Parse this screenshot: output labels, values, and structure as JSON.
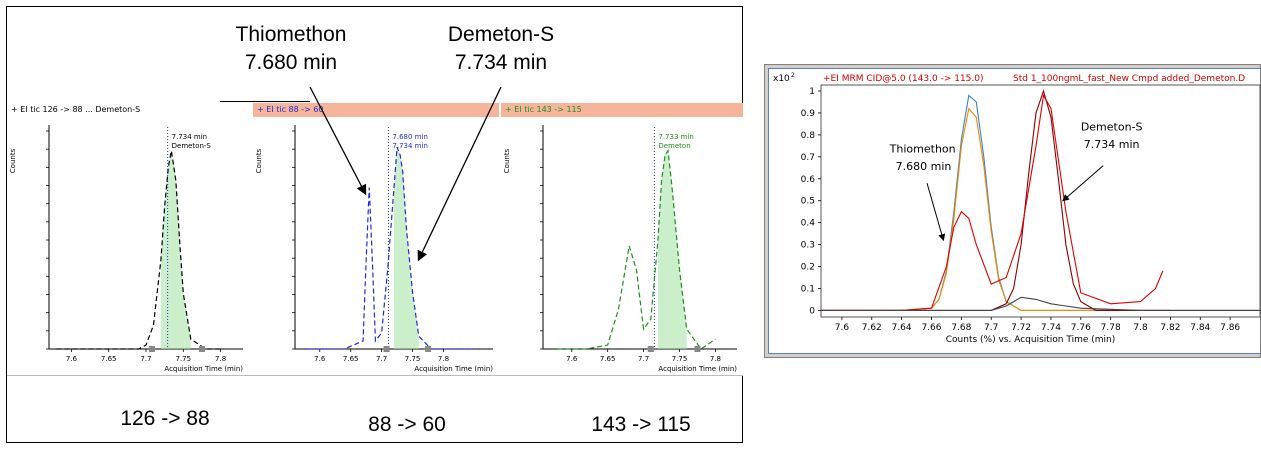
{
  "left_figure": {
    "callouts": {
      "thiomethon_name": "Thiomethon",
      "thiomethon_time": "7.680 min",
      "demeton_name": "Demeton-S",
      "demeton_time": "7.734 min"
    },
    "transition_labels": [
      "126 -> 88",
      "88 -> 60",
      "143 -> 115"
    ],
    "panels": [
      {
        "header_text": "+ EI tic 126 -> 88 ... Demeton-S",
        "header_color": "#ffffff",
        "peak_label_1": "7.734 min",
        "peak_label_2": "Demeton-S",
        "y_axis_label": "Counts",
        "x_axis_label": "Acquisition Time (min)",
        "line_color": "#000000",
        "x_ticks": [
          "7.6",
          "7.65",
          "7.7",
          "7.75",
          "7.8"
        ]
      },
      {
        "header_text": "+ EI tic 88 -> 60",
        "header_color": "#f6b59a",
        "peak_label_1": "7.680 min",
        "peak_label_2": "7.734 min",
        "y_axis_label": "Counts",
        "x_axis_label": "Acquisition Time (min)",
        "line_color": "#1f2bd6",
        "x_ticks": [
          "7.6",
          "7.65",
          "7.7",
          "7.75",
          "7.8"
        ]
      },
      {
        "header_text": "+ EI tic 143 -> 115",
        "header_color": "#f6b59a",
        "peak_label_1": "7.733 min",
        "peak_label_2": "Demeton",
        "y_axis_label": "Counts",
        "x_axis_label": "Acquisition Time (min)",
        "line_color": "#1f8f1f",
        "x_ticks": [
          "7.6",
          "7.65",
          "7.7",
          "7.75",
          "7.8"
        ]
      }
    ]
  },
  "right_chart": {
    "header_text": "+EI MRM CID@5.0 (143.0 -> 115.0)",
    "header_file": "Std 1_100ngmL_fast_New Cmpd added_Demeton.D",
    "y_scale_label": "x10",
    "y_scale_exp": "2",
    "x_axis_title": "Counts (%) vs. Acquisition Time (min)",
    "annotation_thiomethon_name": "Thiomethon",
    "annotation_thiomethon_time": "7.680 min",
    "annotation_demeton_name": "Demeton-S",
    "annotation_demeton_time": "7.734 min"
  },
  "chart_data": [
    {
      "type": "line",
      "series": [
        {
          "color": "#000000",
          "x": [
            7.58,
            7.62,
            7.66,
            7.69,
            7.7,
            7.71,
            7.72,
            7.725,
            7.73,
            7.734,
            7.74,
            7.745,
            7.75,
            7.76,
            7.78,
            7.8
          ],
          "y": [
            0,
            0,
            0,
            0,
            0.02,
            0.12,
            0.45,
            0.72,
            0.92,
            1.0,
            0.85,
            0.55,
            0.28,
            0.05,
            0,
            0
          ]
        }
      ],
      "x_ticks": [
        "7.6",
        "7.65",
        "7.7",
        "7.75",
        "7.8"
      ]
    },
    {
      "type": "line",
      "series": [
        {
          "color": "#1f2bd6",
          "x": [
            7.58,
            7.64,
            7.67,
            7.675,
            7.68,
            7.685,
            7.69,
            7.7,
            7.71,
            7.72,
            7.725,
            7.73,
            7.734,
            7.74,
            7.75,
            7.76,
            7.78,
            7.85
          ],
          "y": [
            0,
            0,
            0.05,
            0.55,
            1.0,
            0.55,
            0.05,
            0.1,
            0.5,
            1.0,
            1.25,
            1.2,
            1.1,
            0.75,
            0.35,
            0.08,
            0,
            0
          ]
        }
      ],
      "x_ticks": [
        "7.6",
        "7.65",
        "7.7",
        "7.75",
        "7.8"
      ]
    },
    {
      "type": "line",
      "series": [
        {
          "color": "#1f8f1f",
          "x": [
            7.58,
            7.62,
            7.65,
            7.665,
            7.68,
            7.69,
            7.7,
            7.71,
            7.72,
            7.725,
            7.73,
            7.734,
            7.74,
            7.75,
            7.76,
            7.78,
            7.8
          ],
          "y": [
            0,
            0,
            0.02,
            0.2,
            0.52,
            0.4,
            0.1,
            0.15,
            0.55,
            0.85,
            0.98,
            1.0,
            0.8,
            0.4,
            0.1,
            0,
            0.05
          ]
        }
      ],
      "x_ticks": [
        "7.6",
        "7.65",
        "7.7",
        "7.75",
        "7.8"
      ]
    },
    {
      "type": "line",
      "xlabel": "Counts (%) vs. Acquisition Time (min)",
      "xlim": [
        7.586,
        7.88
      ],
      "ylim": [
        -0.03,
        1.0
      ],
      "x_ticks": [
        7.6,
        7.62,
        7.64,
        7.66,
        7.68,
        7.7,
        7.72,
        7.74,
        7.76,
        7.78,
        7.8,
        7.82,
        7.84,
        7.86
      ],
      "y_ticks": [
        0,
        0.1,
        0.2,
        0.3,
        0.4,
        0.5,
        0.6,
        0.7,
        0.8,
        0.9,
        1
      ],
      "series": [
        {
          "color": "#3a7fd0",
          "x": [
            7.586,
            7.64,
            7.66,
            7.665,
            7.67,
            7.675,
            7.68,
            7.685,
            7.69,
            7.695,
            7.7,
            7.705,
            7.71,
            7.72,
            7.74,
            7.88
          ],
          "y": [
            0,
            0,
            0.01,
            0.05,
            0.18,
            0.45,
            0.78,
            0.98,
            0.95,
            0.7,
            0.38,
            0.15,
            0.04,
            0,
            0,
            0
          ]
        },
        {
          "color": "#f08a00",
          "x": [
            7.586,
            7.64,
            7.66,
            7.665,
            7.67,
            7.675,
            7.68,
            7.685,
            7.69,
            7.695,
            7.7,
            7.705,
            7.71,
            7.72,
            7.74,
            7.88
          ],
          "y": [
            0,
            0,
            0.01,
            0.05,
            0.17,
            0.42,
            0.75,
            0.92,
            0.88,
            0.66,
            0.36,
            0.14,
            0.04,
            0,
            0,
            0
          ]
        },
        {
          "color": "#8a0000",
          "x": [
            7.586,
            7.7,
            7.71,
            7.715,
            7.72,
            7.725,
            7.73,
            7.735,
            7.74,
            7.745,
            7.75,
            7.755,
            7.76,
            7.77,
            7.79,
            7.82
          ],
          "y": [
            0,
            0,
            0.03,
            0.1,
            0.3,
            0.62,
            0.9,
            1.0,
            0.88,
            0.6,
            0.3,
            0.12,
            0.04,
            0,
            0,
            0
          ]
        },
        {
          "color": "#e00000",
          "x": [
            7.586,
            7.64,
            7.66,
            7.67,
            7.675,
            7.68,
            7.685,
            7.69,
            7.7,
            7.71,
            7.72,
            7.73,
            7.735,
            7.74,
            7.75,
            7.76,
            7.78,
            7.8,
            7.81,
            7.815
          ],
          "y": [
            0,
            0,
            0.01,
            0.2,
            0.38,
            0.45,
            0.42,
            0.3,
            0.12,
            0.15,
            0.35,
            0.75,
            0.98,
            0.92,
            0.45,
            0.08,
            0.03,
            0.04,
            0.1,
            0.18
          ]
        },
        {
          "color": "#444444",
          "x": [
            7.586,
            7.7,
            7.71,
            7.72,
            7.73,
            7.74,
            7.75,
            7.76,
            7.8,
            7.88
          ],
          "y": [
            0,
            0,
            0.02,
            0.06,
            0.05,
            0.03,
            0.02,
            0.01,
            0,
            0
          ]
        }
      ]
    }
  ]
}
